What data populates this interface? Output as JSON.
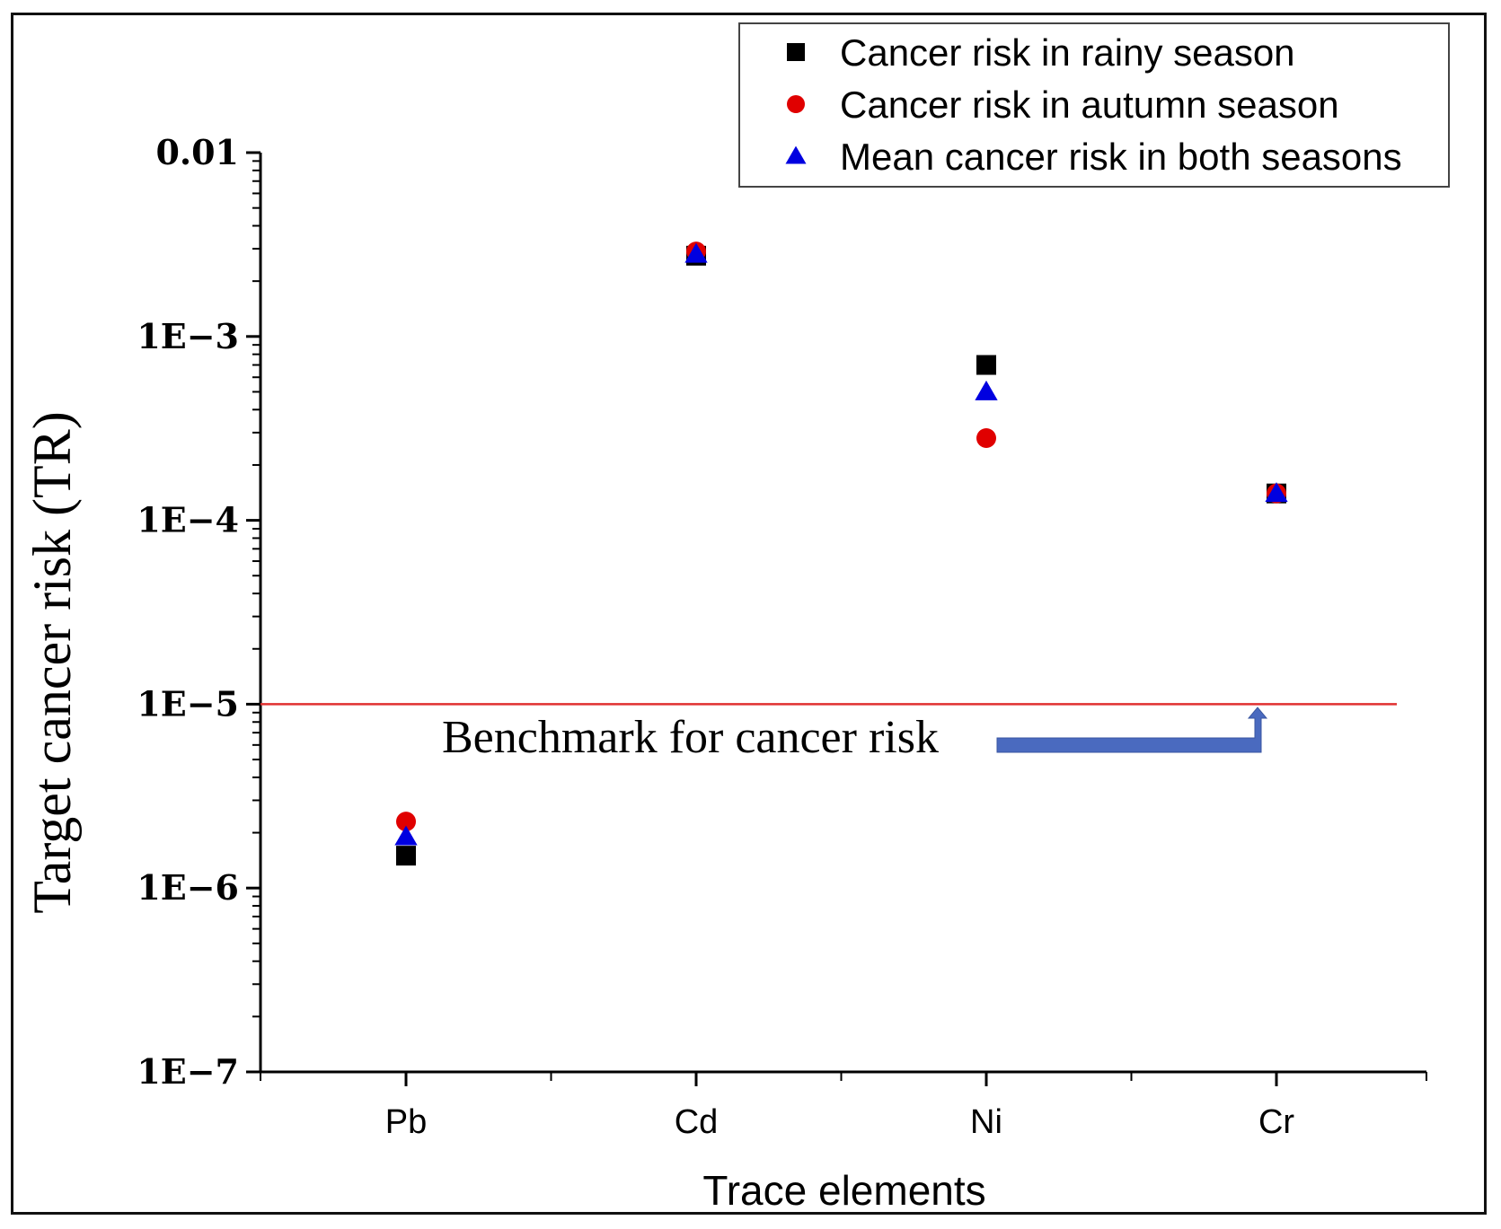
{
  "chart_data": {
    "type": "scatter",
    "title": "",
    "xlabel": "Trace elements",
    "ylabel": "Target cancer risk (TR)",
    "yscale": "log",
    "ylim": [
      1e-07,
      0.01
    ],
    "y_ticks": [
      {
        "value": 0.01,
        "label": "0.01"
      },
      {
        "value": 0.001,
        "label": "1E−3"
      },
      {
        "value": 0.0001,
        "label": "1E−4"
      },
      {
        "value": 1e-05,
        "label": "1E−5"
      },
      {
        "value": 1e-06,
        "label": "1E−6"
      },
      {
        "value": 1e-07,
        "label": "1E−7"
      }
    ],
    "categories": [
      "Pb",
      "Cd",
      "Ni",
      "Cr"
    ],
    "series": [
      {
        "name": "Cancer risk in rainy season",
        "marker": "square",
        "color": "#000000",
        "values": [
          1.5e-06,
          0.00275,
          0.0007,
          0.00014
        ]
      },
      {
        "name": "Cancer risk in autumn season",
        "marker": "circle",
        "color": "#e00000",
        "values": [
          2.3e-06,
          0.0029,
          0.00028,
          0.00014
        ]
      },
      {
        "name": "Mean cancer risk in both seasons",
        "marker": "triangle",
        "color": "#0000e0",
        "values": [
          1.9e-06,
          0.0028,
          0.0005,
          0.00014
        ]
      }
    ],
    "benchmark": {
      "value": 1e-05,
      "label": "Benchmark for cancer risk",
      "color": "#e03030",
      "arrow_color": "#4a6abf"
    },
    "legend_position": "top-right",
    "grid": false
  }
}
